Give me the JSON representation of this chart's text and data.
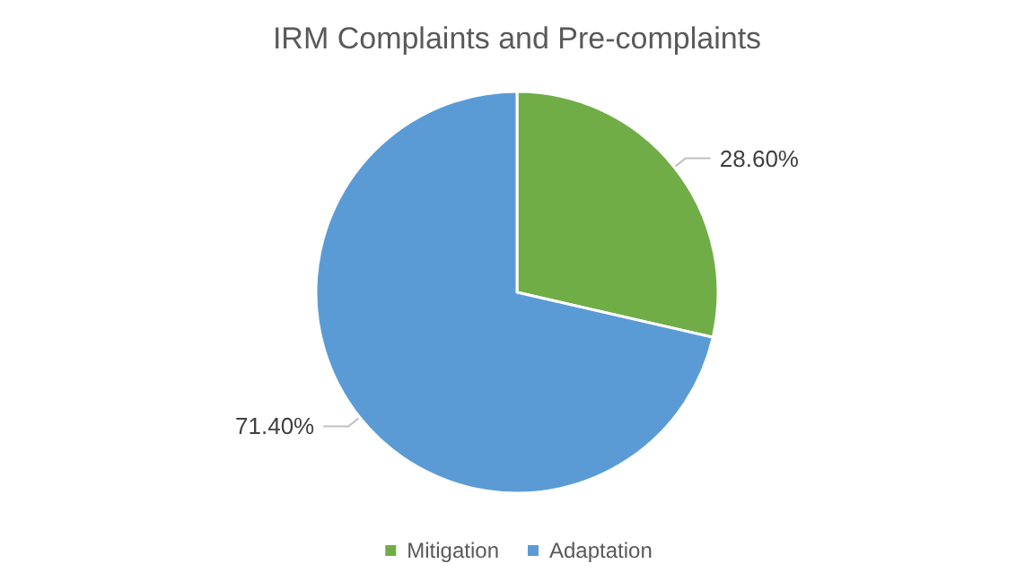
{
  "chart_data": {
    "type": "pie",
    "title": "IRM Complaints and Pre-complaints",
    "categories": [
      "Mitigation",
      "Adaptation"
    ],
    "values": [
      28.6,
      71.4
    ],
    "colors": [
      "#70ad47",
      "#5b9bd5"
    ],
    "value_labels": [
      "28.60%",
      "71.40%"
    ],
    "legend": "bottom"
  }
}
